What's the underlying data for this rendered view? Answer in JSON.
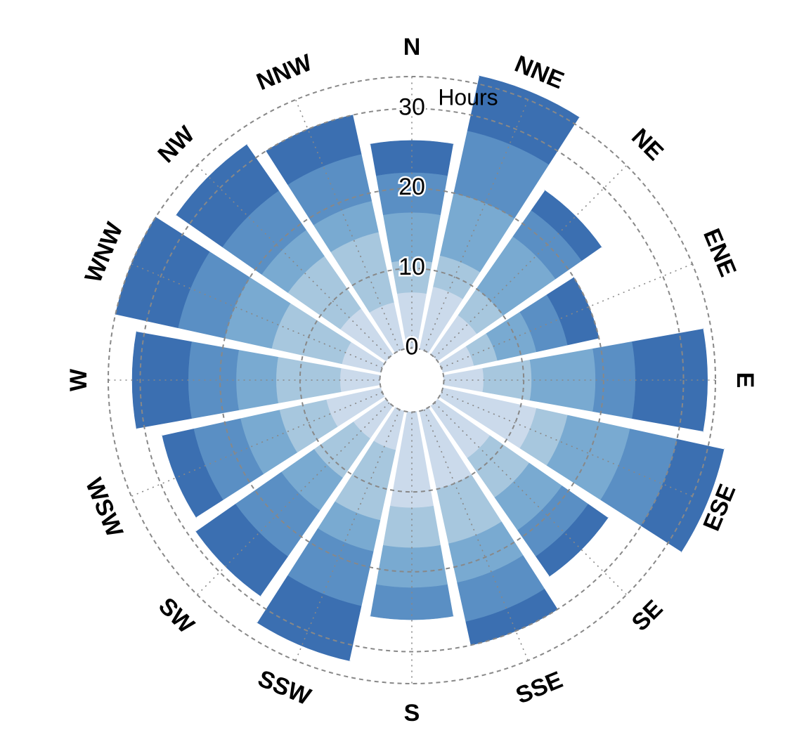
{
  "chart_data": {
    "type": "bar",
    "subtype": "wind-rose (stacked polar bar)",
    "radial_axis_label": "Hours",
    "radial_ticks": [
      0,
      10,
      20,
      30
    ],
    "radial_range": [
      -4,
      34
    ],
    "grid": "dashed circles and dotted spokes",
    "categories": [
      "N",
      "NNE",
      "NE",
      "ENE",
      "E",
      "ESE",
      "SE",
      "SSE",
      "S",
      "SSW",
      "SW",
      "WSW",
      "W",
      "WNW",
      "NW",
      "NNW"
    ],
    "series": [
      {
        "values": [
          7,
          8,
          6,
          4,
          5,
          12,
          8,
          10,
          12,
          5,
          5,
          7,
          5,
          5,
          7,
          6
        ],
        "color": "#cbdaeb"
      },
      {
        "values": [
          4,
          4,
          4,
          3,
          6,
          4,
          6,
          7,
          5,
          9,
          6,
          6,
          8,
          9,
          8,
          9
        ],
        "color": "#a7c7de"
      },
      {
        "values": [
          6,
          8,
          8,
          5,
          8,
          8,
          5,
          5,
          5,
          4,
          5,
          5,
          5,
          6,
          4,
          4
        ],
        "color": "#79aad1"
      },
      {
        "values": [
          5,
          8,
          4,
          4,
          5,
          6,
          4,
          5,
          4,
          7,
          7,
          6,
          6,
          6,
          6,
          6
        ],
        "color": "#5a8fc4"
      },
      {
        "values": [
          4,
          7,
          3,
          4,
          9,
          6,
          3,
          3,
          0,
          7,
          6,
          4,
          7,
          8,
          7,
          5
        ],
        "color": "#3b6fb1"
      }
    ]
  }
}
